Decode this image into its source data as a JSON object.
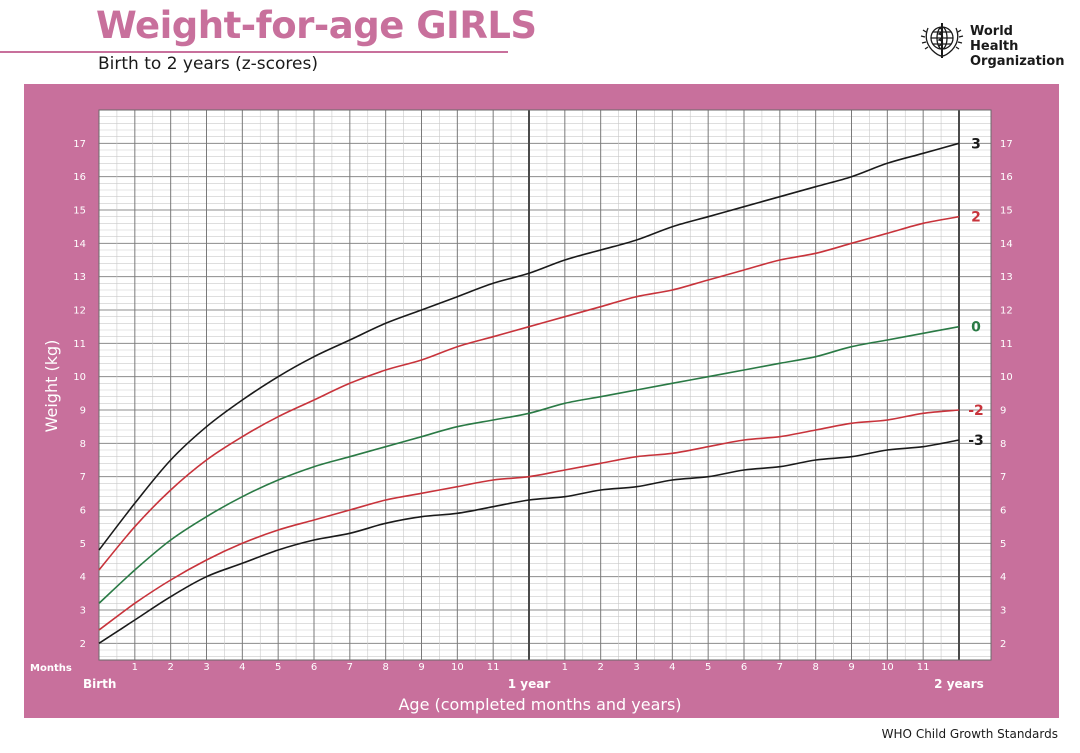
{
  "header": {
    "title": "Weight-for-age GIRLS",
    "subtitle": "Birth to 2 years (z-scores)"
  },
  "logo": {
    "text": "World Health\nOrganization"
  },
  "footer": {
    "source": "WHO Child Growth Standards"
  },
  "colors": {
    "brand_pink": "#c8709c",
    "line_sd3": "#1a1a1a",
    "line_sd2": "#c8333b",
    "line_median": "#2a7a45"
  },
  "chart_data": {
    "type": "line",
    "xlabel": "Age (completed months and years)",
    "ylabel": "Weight (kg)",
    "months_label": "Months",
    "x_range": [
      0,
      24
    ],
    "ylim": [
      1.5,
      18
    ],
    "y_ticks": [
      2,
      3,
      4,
      5,
      6,
      7,
      8,
      9,
      10,
      11,
      12,
      13,
      14,
      15,
      16,
      17
    ],
    "x_month_ticks": [
      {
        "x": 1,
        "label": "1"
      },
      {
        "x": 2,
        "label": "2"
      },
      {
        "x": 3,
        "label": "3"
      },
      {
        "x": 4,
        "label": "4"
      },
      {
        "x": 5,
        "label": "5"
      },
      {
        "x": 6,
        "label": "6"
      },
      {
        "x": 7,
        "label": "7"
      },
      {
        "x": 8,
        "label": "8"
      },
      {
        "x": 9,
        "label": "9"
      },
      {
        "x": 10,
        "label": "10"
      },
      {
        "x": 11,
        "label": "11"
      },
      {
        "x": 13,
        "label": "1"
      },
      {
        "x": 14,
        "label": "2"
      },
      {
        "x": 15,
        "label": "3"
      },
      {
        "x": 16,
        "label": "4"
      },
      {
        "x": 17,
        "label": "5"
      },
      {
        "x": 18,
        "label": "6"
      },
      {
        "x": 19,
        "label": "7"
      },
      {
        "x": 20,
        "label": "8"
      },
      {
        "x": 21,
        "label": "9"
      },
      {
        "x": 22,
        "label": "10"
      },
      {
        "x": 23,
        "label": "11"
      }
    ],
    "x_year_ticks": [
      {
        "x": 0,
        "label": "Birth"
      },
      {
        "x": 12,
        "label": "1 year"
      },
      {
        "x": 24,
        "label": "2 years"
      }
    ],
    "grid": true,
    "x": [
      0,
      1,
      2,
      3,
      4,
      5,
      6,
      7,
      8,
      9,
      10,
      11,
      12,
      13,
      14,
      15,
      16,
      17,
      18,
      19,
      20,
      21,
      22,
      23,
      24
    ],
    "series": [
      {
        "name": "3",
        "color": "#1a1a1a",
        "values": [
          4.8,
          6.2,
          7.5,
          8.5,
          9.3,
          10.0,
          10.6,
          11.1,
          11.6,
          12.0,
          12.4,
          12.8,
          13.1,
          13.5,
          13.8,
          14.1,
          14.5,
          14.8,
          15.1,
          15.4,
          15.7,
          16.0,
          16.4,
          16.7,
          17.0
        ]
      },
      {
        "name": "2",
        "color": "#c8333b",
        "values": [
          4.2,
          5.5,
          6.6,
          7.5,
          8.2,
          8.8,
          9.3,
          9.8,
          10.2,
          10.5,
          10.9,
          11.2,
          11.5,
          11.8,
          12.1,
          12.4,
          12.6,
          12.9,
          13.2,
          13.5,
          13.7,
          14.0,
          14.3,
          14.6,
          14.8
        ]
      },
      {
        "name": "0",
        "color": "#2a7a45",
        "values": [
          3.2,
          4.2,
          5.1,
          5.8,
          6.4,
          6.9,
          7.3,
          7.6,
          7.9,
          8.2,
          8.5,
          8.7,
          8.9,
          9.2,
          9.4,
          9.6,
          9.8,
          10.0,
          10.2,
          10.4,
          10.6,
          10.9,
          11.1,
          11.3,
          11.5
        ]
      },
      {
        "name": "-2",
        "color": "#c8333b",
        "values": [
          2.4,
          3.2,
          3.9,
          4.5,
          5.0,
          5.4,
          5.7,
          6.0,
          6.3,
          6.5,
          6.7,
          6.9,
          7.0,
          7.2,
          7.4,
          7.6,
          7.7,
          7.9,
          8.1,
          8.2,
          8.4,
          8.6,
          8.7,
          8.9,
          9.0
        ]
      },
      {
        "name": "-3",
        "color": "#1a1a1a",
        "values": [
          2.0,
          2.7,
          3.4,
          4.0,
          4.4,
          4.8,
          5.1,
          5.3,
          5.6,
          5.8,
          5.9,
          6.1,
          6.3,
          6.4,
          6.6,
          6.7,
          6.9,
          7.0,
          7.2,
          7.3,
          7.5,
          7.6,
          7.8,
          7.9,
          8.1
        ]
      }
    ]
  }
}
